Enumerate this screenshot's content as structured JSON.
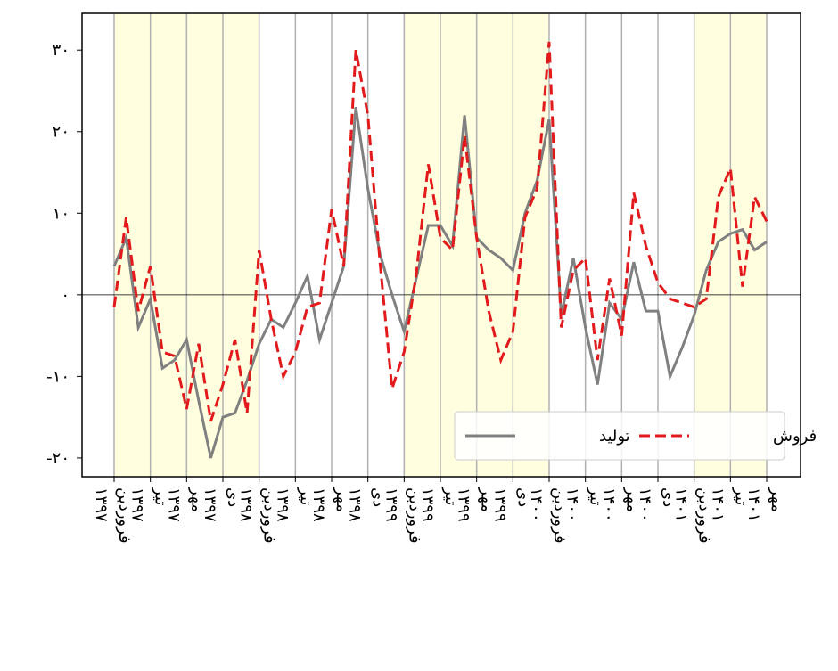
{
  "chart_data": {
    "type": "line",
    "categories": [
      "فروردین ۱۳۹۷",
      null,
      null,
      "تیر ۱۳۹۷",
      null,
      null,
      "مهر ۱۳۹۷",
      null,
      null,
      "دی ۱۳۹۷",
      null,
      null,
      "فروردین ۱۳۹۸",
      null,
      null,
      "تیر ۱۳۹۸",
      null,
      null,
      "مهر ۱۳۹۸",
      null,
      null,
      "دی ۱۳۹۸",
      null,
      null,
      "فروردین ۱۳۹۹",
      null,
      null,
      "تیر ۱۳۹۹",
      null,
      null,
      "مهر ۱۳۹۹",
      null,
      null,
      "دی ۱۳۹۹",
      null,
      null,
      "فروردین ۱۴۰۰",
      null,
      null,
      "تیر ۱۴۰۰",
      null,
      null,
      "مهر ۱۴۰۰",
      null,
      null,
      "دی ۱۴۰۰",
      null,
      null,
      "فروردین ۱۴۰۱",
      null,
      null,
      "تیر ۱۴۰۱",
      null,
      null,
      "مهر ۱۴۰۱"
    ],
    "series": [
      {
        "name": "تولید",
        "color": "#808080",
        "dash": false,
        "values": [
          3.5,
          7,
          -4,
          -0.5,
          -9,
          -8,
          -5.5,
          -13,
          -20,
          -15,
          -14.5,
          -10.5,
          -6,
          -3,
          -4,
          -1,
          2.3,
          -5.5,
          -1,
          3.5,
          23,
          13,
          5,
          0,
          -4.5,
          2,
          8.5,
          8.5,
          6,
          22,
          7,
          5.5,
          4.5,
          3,
          10,
          14,
          21.5,
          -2.5,
          4.5,
          -4,
          -11,
          -1,
          -3,
          4,
          -2,
          -2,
          -10,
          -6.5,
          -2.5,
          3,
          6.5,
          7.5,
          8,
          5.5,
          6.5
        ]
      },
      {
        "name": "فروش",
        "color": "#e31a1c",
        "dash": true,
        "values": [
          -1.5,
          9.5,
          -2,
          3.5,
          -7,
          -7.5,
          -14,
          -6,
          -15.5,
          -11,
          -5.5,
          -14.5,
          5.5,
          -3,
          -10,
          -7,
          -1.5,
          -1,
          10.5,
          3.5,
          30,
          22,
          4,
          -11.5,
          -7,
          2.5,
          16,
          7,
          5.5,
          19.5,
          7,
          -2,
          -8,
          -4.5,
          9.5,
          13,
          31,
          -4,
          3,
          4.5,
          -8,
          2,
          -5,
          12.5,
          6,
          1.5,
          -0.5,
          -1,
          -1.5,
          -0.5,
          12,
          15.5,
          1,
          12,
          9
        ]
      }
    ],
    "ylim": [
      -22.3,
      34.5
    ],
    "yticks": [
      {
        "value": -20,
        "label": "-۲۰"
      },
      {
        "value": -10,
        "label": "-۱۰"
      },
      {
        "value": 0,
        "label": "۰"
      },
      {
        "value": 10,
        "label": "۱۰"
      },
      {
        "value": 20,
        "label": "۲۰"
      },
      {
        "value": 30,
        "label": "۳۰"
      }
    ],
    "grid": true,
    "legend": "lower right"
  }
}
